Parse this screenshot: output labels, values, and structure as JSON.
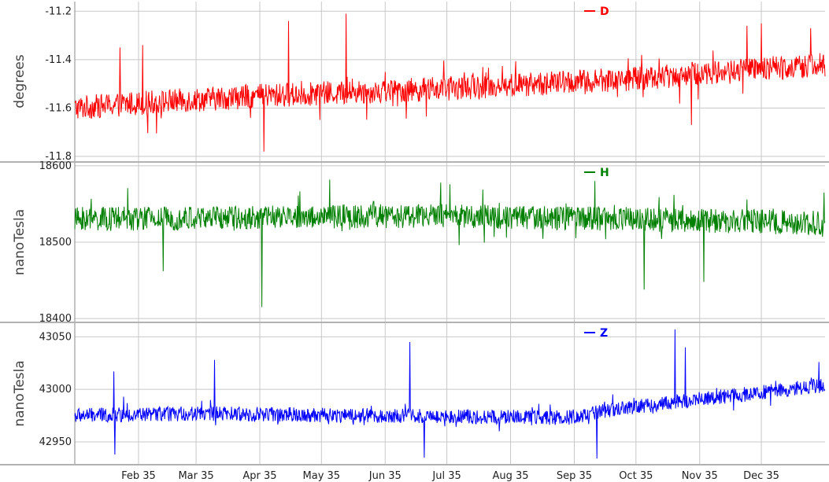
{
  "chart_data": [
    {
      "type": "line",
      "series": [
        {
          "name": "D",
          "color": "#ff0000"
        }
      ],
      "ylabel": "degrees",
      "ylim": [
        -11.82,
        -11.16
      ],
      "yticks": [
        -11.8,
        -11.6,
        -11.4,
        -11.2
      ],
      "ytick_labels": [
        "-11.8",
        "-11.6",
        "-11.4",
        "-11.2"
      ],
      "trend": [
        [
          0,
          -11.6
        ],
        [
          30,
          -11.58
        ],
        [
          90,
          -11.55
        ],
        [
          180,
          -11.52
        ],
        [
          270,
          -11.48
        ],
        [
          330,
          -11.44
        ],
        [
          365,
          -11.42
        ]
      ],
      "noise": 0.05,
      "spikes": [
        {
          "x": 22,
          "y": -11.35
        },
        {
          "x": 33,
          "y": -11.34
        },
        {
          "x": 104,
          "y": -11.24
        },
        {
          "x": 132,
          "y": -11.21
        },
        {
          "x": 327,
          "y": -11.26
        },
        {
          "x": 334,
          "y": -11.25
        },
        {
          "x": 358,
          "y": -11.27
        },
        {
          "x": 92,
          "y": -11.78
        },
        {
          "x": 300,
          "y": -11.67
        }
      ]
    },
    {
      "type": "line",
      "series": [
        {
          "name": "H",
          "color": "#008000"
        }
      ],
      "ylabel": "nanoTesla",
      "ylim": [
        18396,
        18604
      ],
      "yticks": [
        18400,
        18500,
        18600
      ],
      "ytick_labels": [
        "18400",
        "18500",
        "18600"
      ],
      "trend": [
        [
          0,
          18530
        ],
        [
          180,
          18535
        ],
        [
          365,
          18525
        ]
      ],
      "noise": 16,
      "spikes": [
        {
          "x": 91,
          "y": 18415
        },
        {
          "x": 124,
          "y": 18582
        },
        {
          "x": 178,
          "y": 18578
        },
        {
          "x": 253,
          "y": 18580
        },
        {
          "x": 277,
          "y": 18438
        },
        {
          "x": 306,
          "y": 18448
        },
        {
          "x": 43,
          "y": 18462
        }
      ]
    },
    {
      "type": "line",
      "series": [
        {
          "name": "Z",
          "color": "#0000ff"
        }
      ],
      "ylabel": "nanoTesla",
      "ylim": [
        42929,
        43063
      ],
      "yticks": [
        42950,
        43000,
        43050
      ],
      "ytick_labels": [
        "42950",
        "43000",
        "43050"
      ],
      "trend": [
        [
          0,
          42975
        ],
        [
          60,
          42977
        ],
        [
          150,
          42975
        ],
        [
          240,
          42973
        ],
        [
          260,
          42980
        ],
        [
          300,
          42990
        ],
        [
          330,
          42996
        ],
        [
          365,
          43004
        ]
      ],
      "noise": 7,
      "spikes": [
        {
          "x": 19,
          "y": 43017
        },
        {
          "x": 19.5,
          "y": 42938
        },
        {
          "x": 68,
          "y": 43028
        },
        {
          "x": 163,
          "y": 43045
        },
        {
          "x": 254,
          "y": 42934
        },
        {
          "x": 292,
          "y": 43057
        },
        {
          "x": 297,
          "y": 43040
        },
        {
          "x": 362,
          "y": 43026
        },
        {
          "x": 170,
          "y": 42935
        }
      ]
    }
  ],
  "x_axis": {
    "tick_labels": [
      "Feb 35",
      "Mar 35",
      "Apr 35",
      "May 35",
      "Jun 35",
      "Jul 35",
      "Aug 35",
      "Sep 35",
      "Oct 35",
      "Nov 35",
      "Dec 35"
    ],
    "tick_days": [
      31,
      59,
      90,
      120,
      151,
      181,
      212,
      243,
      273,
      304,
      334
    ],
    "xlim": [
      0,
      365
    ]
  },
  "grid": true
}
